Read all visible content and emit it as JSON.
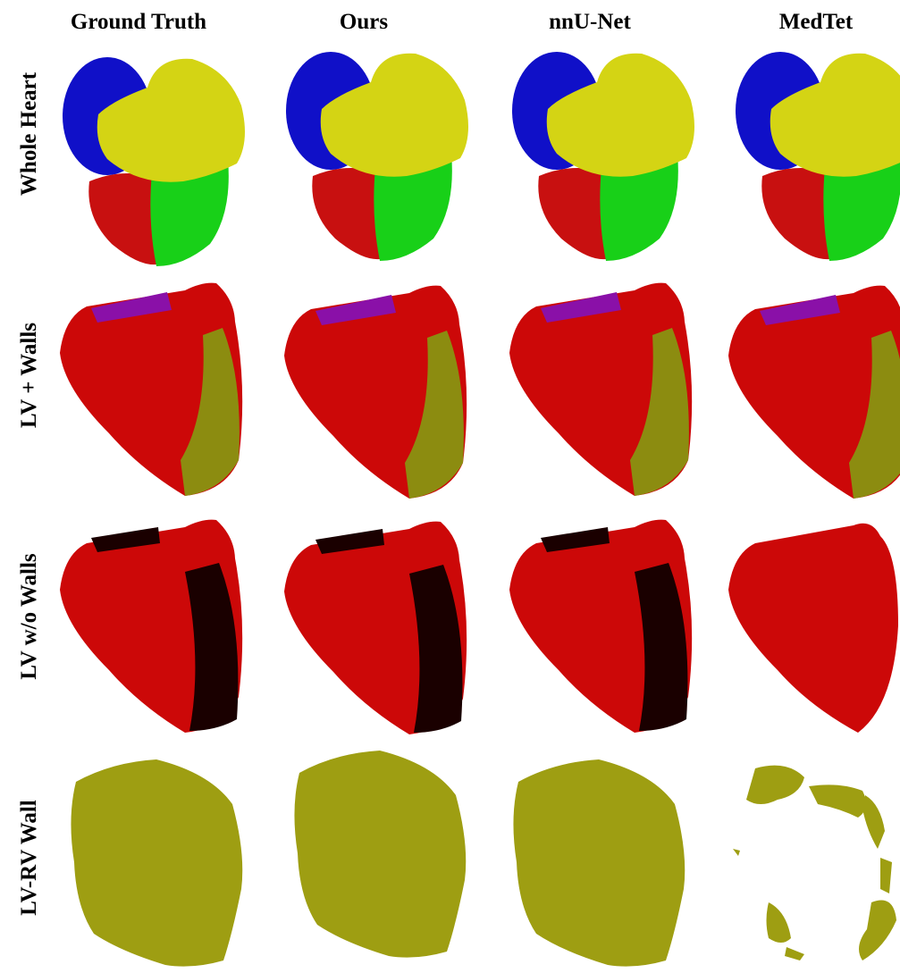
{
  "columns": [
    "Ground Truth",
    "Ours",
    "nnU-Net",
    "MedTet"
  ],
  "rows": [
    "Whole Heart",
    "LV + Walls",
    "LV w/o Walls",
    "LV-RV Wall"
  ]
}
